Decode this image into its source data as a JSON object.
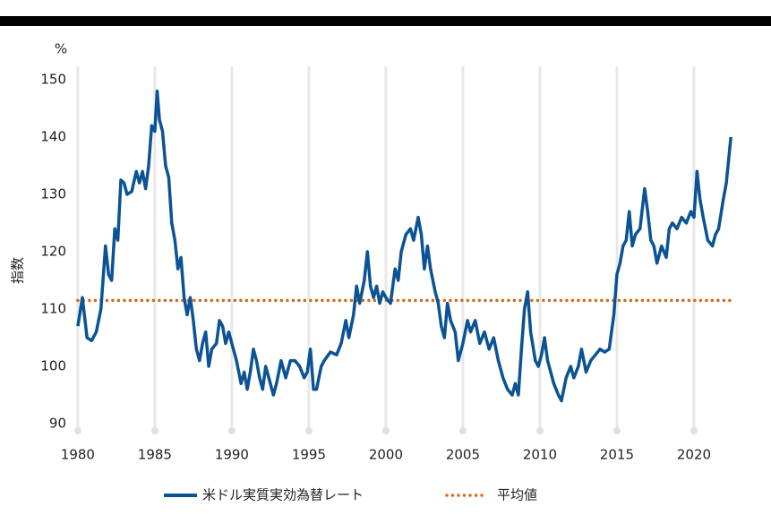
{
  "chart_data": {
    "type": "line",
    "y_unit": "%",
    "y_label": "指数",
    "x": [
      1980.0,
      1980.3,
      1980.6,
      1980.9,
      1981.2,
      1981.5,
      1981.8,
      1982.0,
      1982.2,
      1982.4,
      1982.6,
      1982.8,
      1983.0,
      1983.2,
      1983.5,
      1983.8,
      1984.0,
      1984.2,
      1984.4,
      1984.6,
      1984.8,
      1985.0,
      1985.15,
      1985.3,
      1985.5,
      1985.7,
      1985.9,
      1986.1,
      1986.3,
      1986.5,
      1986.7,
      1986.9,
      1987.1,
      1987.3,
      1987.5,
      1987.7,
      1987.9,
      1988.1,
      1988.3,
      1988.5,
      1988.7,
      1989.0,
      1989.2,
      1989.4,
      1989.6,
      1989.8,
      1990.0,
      1990.3,
      1990.6,
      1990.8,
      1991.0,
      1991.2,
      1991.4,
      1991.6,
      1991.8,
      1992.0,
      1992.2,
      1992.5,
      1992.7,
      1992.9,
      1993.2,
      1993.5,
      1993.8,
      1994.1,
      1994.4,
      1994.7,
      1994.9,
      1995.1,
      1995.3,
      1995.5,
      1995.8,
      1996.0,
      1996.4,
      1996.8,
      1997.1,
      1997.4,
      1997.6,
      1997.9,
      1998.1,
      1998.3,
      1998.6,
      1998.8,
      1999.0,
      1999.2,
      1999.4,
      1999.6,
      1999.8,
      2000.0,
      2000.3,
      2000.6,
      2000.8,
      2001.0,
      2001.3,
      2001.6,
      2001.8,
      2002.1,
      2002.3,
      2002.5,
      2002.7,
      2002.9,
      2003.2,
      2003.4,
      2003.6,
      2003.8,
      2004.0,
      2004.2,
      2004.5,
      2004.7,
      2005.0,
      2005.3,
      2005.5,
      2005.8,
      2006.1,
      2006.4,
      2006.7,
      2007.0,
      2007.3,
      2007.6,
      2007.9,
      2008.2,
      2008.4,
      2008.6,
      2008.8,
      2009.0,
      2009.2,
      2009.4,
      2009.7,
      2009.9,
      2010.1,
      2010.3,
      2010.5,
      2010.7,
      2010.9,
      2011.2,
      2011.4,
      2011.7,
      2012.0,
      2012.2,
      2012.5,
      2012.7,
      2013.0,
      2013.3,
      2013.6,
      2013.9,
      2014.2,
      2014.5,
      2014.8,
      2015.0,
      2015.2,
      2015.4,
      2015.6,
      2015.8,
      2016.0,
      2016.2,
      2016.5,
      2016.8,
      2017.0,
      2017.2,
      2017.4,
      2017.6,
      2017.9,
      2018.2,
      2018.4,
      2018.6,
      2018.9,
      2019.2,
      2019.5,
      2019.8,
      2020.0,
      2020.2,
      2020.4,
      2020.6,
      2020.9,
      2021.2,
      2021.4,
      2021.6,
      2021.9,
      2022.1,
      2022.4
    ],
    "series": [
      {
        "name": "米ドル実質実効為替レート",
        "color": "#0b5394",
        "values": [
          107,
          112,
          105,
          104.5,
          106,
          110,
          121,
          116,
          115,
          124,
          122,
          132.5,
          132,
          130,
          130.5,
          134,
          132,
          134,
          131,
          135,
          142,
          141,
          148,
          143,
          141,
          135,
          133,
          125,
          122,
          117,
          119,
          112,
          109,
          112,
          108,
          103,
          101,
          104,
          106,
          100,
          103,
          104,
          108,
          107,
          104,
          106,
          104,
          101,
          97,
          99,
          96,
          99,
          103,
          101,
          98,
          96,
          100,
          97,
          95,
          97,
          101,
          98,
          101,
          101,
          100,
          98,
          99,
          103,
          96,
          96,
          100,
          101,
          102.5,
          102,
          104,
          108,
          105,
          109,
          114,
          111,
          115,
          120,
          114,
          112,
          114,
          111,
          113,
          112,
          111,
          117,
          115,
          120,
          123,
          124,
          122,
          126,
          123,
          117,
          121,
          117,
          113,
          111,
          107,
          105,
          111,
          108,
          106,
          101,
          104,
          108,
          106,
          108,
          104,
          106,
          103,
          105,
          101,
          98,
          96,
          95,
          97,
          95,
          103,
          110,
          113,
          106,
          101,
          100,
          102,
          105,
          101,
          99,
          97,
          95,
          94,
          98,
          100,
          98,
          100,
          103,
          99,
          101,
          102,
          103,
          102.5,
          103,
          109,
          116,
          118,
          121,
          122,
          127,
          121,
          123,
          124,
          131,
          127,
          122,
          121,
          118,
          121,
          119,
          124,
          125,
          124,
          126,
          125,
          127,
          126,
          134,
          129,
          126,
          122,
          121,
          123,
          124,
          129,
          132,
          140
        ]
      }
    ],
    "average": {
      "name": "平均値",
      "color": "#d2691e",
      "value": 111.5
    },
    "xlim": [
      1979.6,
      2023.2
    ],
    "xticks": [
      1980,
      1985,
      1990,
      1995,
      2000,
      2005,
      2010,
      2015,
      2020
    ],
    "ylim": [
      88,
      152
    ],
    "yticks": [
      90,
      100,
      110,
      120,
      130,
      140,
      150
    ],
    "grid": "x"
  }
}
